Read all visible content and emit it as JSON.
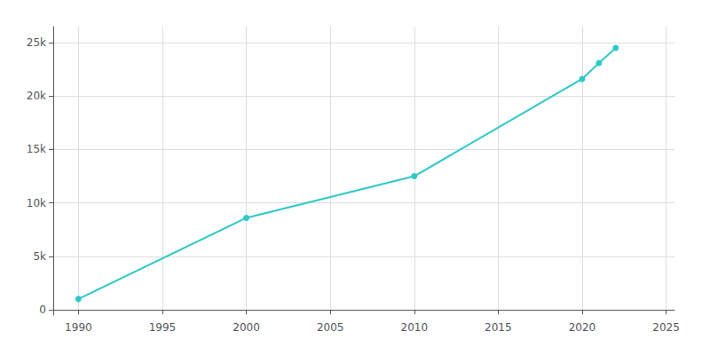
{
  "chart_data": {
    "type": "line",
    "x": [
      1990,
      2000,
      2010,
      2020,
      2021,
      2022
    ],
    "values": [
      1007,
      8600,
      12500,
      21600,
      23100,
      24500
    ],
    "color": "#2ec8c8",
    "marker": "circle",
    "xlim": [
      1988.5,
      2025.5
    ],
    "xticks": [
      1990,
      1995,
      2000,
      2005,
      2010,
      2015,
      2020,
      2025
    ],
    "ylim": [
      -500,
      26500
    ],
    "yticks": [
      0,
      {
        "value": 5000,
        "label": "5k"
      },
      {
        "value": 10000,
        "label": "10k"
      },
      {
        "value": 15000,
        "label": "15k"
      },
      {
        "value": 20000,
        "label": "20k"
      },
      {
        "value": 25000,
        "label": "25k"
      }
    ],
    "grid": true
  }
}
